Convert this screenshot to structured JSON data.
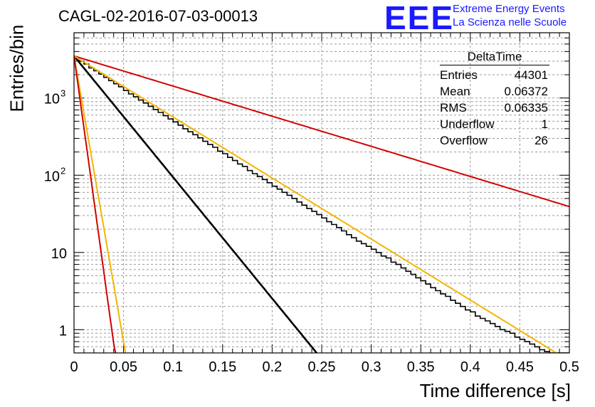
{
  "title": "CAGL-02-2016-07-03-00013",
  "branding": {
    "logo": "EEE",
    "line1": "Extreme Energy Events",
    "line2": "La Scienza nelle Scuole",
    "color": "#1a1aff"
  },
  "stats_box": {
    "header": "DeltaTime",
    "rows": [
      {
        "label": "Entries",
        "value": "44301"
      },
      {
        "label": "Mean",
        "value": "0.06372"
      },
      {
        "label": "RMS",
        "value": "0.06335"
      },
      {
        "label": "Underflow",
        "value": "1"
      },
      {
        "label": "Overflow",
        "value": "26"
      }
    ]
  },
  "chart_data": {
    "type": "line",
    "xlabel": "Time difference [s]",
    "ylabel": "Entries/bin",
    "xlim": [
      0,
      0.5
    ],
    "ylim": [
      0.5,
      7000
    ],
    "y_scale": "log",
    "grid": true,
    "x_ticks": [
      "0",
      "0.05",
      "0.1",
      "0.15",
      "0.2",
      "0.25",
      "0.3",
      "0.35",
      "0.4",
      "0.45",
      "0.5"
    ],
    "y_ticks": [
      "1",
      "10",
      "10^2",
      "10^3"
    ],
    "series": [
      {
        "kind": "histogram",
        "color": "#000000",
        "bin_width": 0.005,
        "values": [
          3300,
          3000,
          2750,
          2450,
          2250,
          2050,
          1850,
          1680,
          1530,
          1400,
          1250,
          1130,
          1040,
          940,
          860,
          780,
          710,
          650,
          590,
          535,
          490,
          445,
          400,
          365,
          335,
          305,
          275,
          250,
          230,
          205,
          190,
          170,
          155,
          140,
          130,
          115,
          105,
          96,
          88,
          80,
          72,
          66,
          60,
          55,
          50,
          45,
          41,
          37,
          34,
          31,
          28,
          25,
          23,
          21,
          19,
          17,
          15.5,
          14,
          13,
          12,
          11,
          10,
          9,
          8.5,
          7.5,
          7,
          6.3,
          5.7,
          5.2,
          4.7,
          4.3,
          3.9,
          3.5,
          3.2,
          2.9,
          2.7,
          2.4,
          2.2,
          2,
          1.8,
          1.7,
          1.5,
          1.4,
          1.3,
          1.2,
          1.1,
          1,
          0.95,
          0.9,
          0.8,
          0.75,
          0.7,
          0.65,
          0.6,
          0.55,
          0.52,
          0.5,
          0.5,
          0.5,
          0.5
        ]
      },
      {
        "kind": "fit",
        "color": "#000000",
        "y0": 3500,
        "slope": -15.7
      },
      {
        "kind": "fit",
        "color": "#d40000",
        "y0": 3500,
        "slope": -3.9
      },
      {
        "kind": "fit",
        "color": "#f2b600",
        "y0": 3500,
        "slope": -7.9
      },
      {
        "kind": "fit",
        "color": "#f2b600",
        "y0": 3500,
        "slope": -74
      },
      {
        "kind": "fit",
        "color": "#d40000",
        "y0": 3500,
        "slope": -93
      }
    ]
  }
}
